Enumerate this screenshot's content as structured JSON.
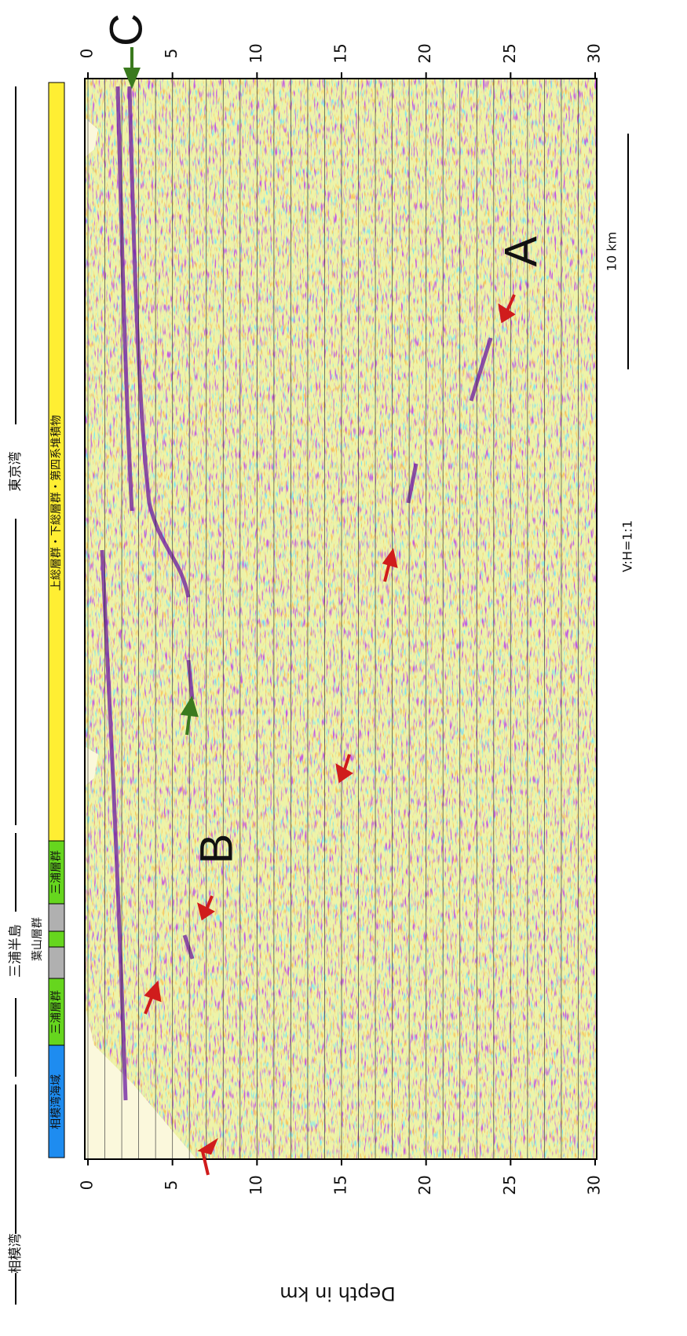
{
  "labels": {
    "a": "A",
    "b": "B",
    "c": "C"
  },
  "regions": [
    {
      "label": "相模湾"
    },
    {
      "label": "三浦半島"
    },
    {
      "label": "東京湾"
    }
  ],
  "units": [
    {
      "label": "相模湾海域"
    },
    {
      "label": "三浦層群"
    },
    {
      "label": "葉山層群"
    },
    {
      "label": "三浦層群"
    },
    {
      "label": "上総層群・下総層群・第四系堆積物"
    }
  ],
  "depth_axis": {
    "label": "Depth in km",
    "ticks": [
      0,
      5,
      10,
      15,
      20,
      25,
      30
    ]
  },
  "scale_bar": "10 km",
  "ratio": "V:H=1:1"
}
